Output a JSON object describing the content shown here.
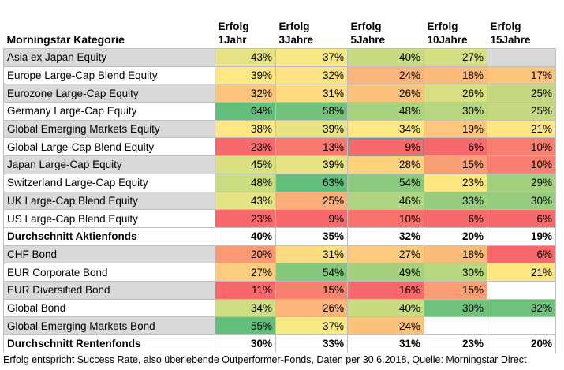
{
  "header": {
    "category": "Morningstar Kategorie",
    "cols": [
      {
        "l1": "Erfolg",
        "l2": "1Jahr"
      },
      {
        "l1": "Erfolg",
        "l2": "3Jahre"
      },
      {
        "l1": "Erfolg",
        "l2": "5Jahre"
      },
      {
        "l1": "Erfolg",
        "l2": "10Jahre"
      },
      {
        "l1": "Erfolg",
        "l2": "15Jahre"
      }
    ]
  },
  "rows": [
    {
      "name": "Asia ex Japan Equity",
      "shade": true,
      "bold": false,
      "cells": [
        {
          "v": "43%",
          "c": "#e5e383"
        },
        {
          "v": "37%",
          "c": "#f5e885"
        },
        {
          "v": "40%",
          "c": "#c7dc81"
        },
        {
          "v": "27%",
          "c": "#d4df82"
        },
        {
          "v": "",
          "c": "#d9d9d9"
        }
      ]
    },
    {
      "name": "Europe Large-Cap Blend Equity",
      "shade": false,
      "bold": false,
      "cells": [
        {
          "v": "39%",
          "c": "#fde883"
        },
        {
          "v": "32%",
          "c": "#fde283"
        },
        {
          "v": "24%",
          "c": "#fbb479"
        },
        {
          "v": "18%",
          "c": "#fbbc7b"
        },
        {
          "v": "17%",
          "c": "#fcc37c"
        }
      ]
    },
    {
      "name": "Eurozone Large-Cap Equity",
      "shade": true,
      "bold": false,
      "cells": [
        {
          "v": "32%",
          "c": "#fbc47c"
        },
        {
          "v": "31%",
          "c": "#fddc82"
        },
        {
          "v": "26%",
          "c": "#fcc27c"
        },
        {
          "v": "26%",
          "c": "#d8e082"
        },
        {
          "v": "25%",
          "c": "#c5da80"
        }
      ]
    },
    {
      "name": "Germany Large-Cap Equity",
      "shade": false,
      "bold": false,
      "cells": [
        {
          "v": "64%",
          "c": "#63be7b"
        },
        {
          "v": "58%",
          "c": "#74c37c"
        },
        {
          "v": "48%",
          "c": "#a9d27f"
        },
        {
          "v": "30%",
          "c": "#b6d680"
        },
        {
          "v": "25%",
          "c": "#c5da80"
        }
      ]
    },
    {
      "name": "Global Emerging Markets Equity",
      "shade": true,
      "bold": false,
      "cells": [
        {
          "v": "38%",
          "c": "#fee784"
        },
        {
          "v": "39%",
          "c": "#e6e483"
        },
        {
          "v": "34%",
          "c": "#fee884"
        },
        {
          "v": "19%",
          "c": "#fcc77d"
        },
        {
          "v": "21%",
          "c": "#fee683"
        }
      ]
    },
    {
      "name": "Global Large-Cap Blend Equity",
      "shade": false,
      "bold": false,
      "cells": [
        {
          "v": "23%",
          "c": "#f8696b"
        },
        {
          "v": "13%",
          "c": "#f8786e"
        },
        {
          "v": "9%",
          "c": "#f8696b",
          "sel": true
        },
        {
          "v": "6%",
          "c": "#f8696b"
        },
        {
          "v": "10%",
          "c": "#f97f70"
        }
      ]
    },
    {
      "name": "Japan Large-Cap Equity",
      "shade": true,
      "bold": false,
      "cells": [
        {
          "v": "45%",
          "c": "#d9e082"
        },
        {
          "v": "39%",
          "c": "#e6e483"
        },
        {
          "v": "28%",
          "c": "#fdd27f"
        },
        {
          "v": "15%",
          "c": "#fa9e75"
        },
        {
          "v": "10%",
          "c": "#f97f70"
        }
      ]
    },
    {
      "name": "Switzerland Large-Cap Equity",
      "shade": false,
      "bold": false,
      "cells": [
        {
          "v": "48%",
          "c": "#c9dc81"
        },
        {
          "v": "63%",
          "c": "#63be7b"
        },
        {
          "v": "54%",
          "c": "#8bca7e"
        },
        {
          "v": "23%",
          "c": "#fee683"
        },
        {
          "v": "29%",
          "c": "#a2d07f"
        }
      ]
    },
    {
      "name": "UK Large-Cap Blend Equity",
      "shade": true,
      "bold": false,
      "cells": [
        {
          "v": "43%",
          "c": "#e5e383"
        },
        {
          "v": "25%",
          "c": "#fbae78"
        },
        {
          "v": "46%",
          "c": "#b1d480"
        },
        {
          "v": "33%",
          "c": "#98cd7e"
        },
        {
          "v": "30%",
          "c": "#98cd7e"
        }
      ]
    },
    {
      "name": "US Large-Cap Blend Equity",
      "shade": false,
      "bold": false,
      "cells": [
        {
          "v": "23%",
          "c": "#f8696b"
        },
        {
          "v": "9%",
          "c": "#f8696b"
        },
        {
          "v": "10%",
          "c": "#f8716c"
        },
        {
          "v": "6%",
          "c": "#f8696b"
        },
        {
          "v": "6%",
          "c": "#f8696b"
        }
      ]
    },
    {
      "name": "Durchschnitt Aktienfonds",
      "shade": false,
      "bold": true,
      "cells": [
        {
          "v": "40%",
          "c": ""
        },
        {
          "v": "35%",
          "c": ""
        },
        {
          "v": "32%",
          "c": ""
        },
        {
          "v": "20%",
          "c": ""
        },
        {
          "v": "19%",
          "c": ""
        }
      ]
    },
    {
      "name": "CHF Bond",
      "shade": true,
      "bold": false,
      "cells": [
        {
          "v": "20%",
          "c": "#fa9a74"
        },
        {
          "v": "31%",
          "c": "#fddc82"
        },
        {
          "v": "27%",
          "c": "#fdca7e"
        },
        {
          "v": "18%",
          "c": "#fbbc7b"
        },
        {
          "v": "6%",
          "c": "#f8696b"
        }
      ]
    },
    {
      "name": "EUR Corporate Bond",
      "shade": false,
      "bold": false,
      "cells": [
        {
          "v": "27%",
          "c": "#fccd7e"
        },
        {
          "v": "54%",
          "c": "#84c77d"
        },
        {
          "v": "49%",
          "c": "#a5d17f"
        },
        {
          "v": "30%",
          "c": "#b6d680"
        },
        {
          "v": "21%",
          "c": "#fee683"
        }
      ]
    },
    {
      "name": "EUR Diversified Bond",
      "shade": true,
      "bold": false,
      "cells": [
        {
          "v": "11%",
          "c": "#f8696b"
        },
        {
          "v": "15%",
          "c": "#f8816f"
        },
        {
          "v": "16%",
          "c": "#f8696b"
        },
        {
          "v": "15%",
          "c": "#fa9e75"
        },
        {
          "v": "",
          "c": "#ffffff"
        }
      ]
    },
    {
      "name": "Global Bond",
      "shade": false,
      "bold": false,
      "cells": [
        {
          "v": "34%",
          "c": "#cfde82"
        },
        {
          "v": "26%",
          "c": "#fbb479"
        },
        {
          "v": "40%",
          "c": "#c7dc81"
        },
        {
          "v": "30%",
          "c": "#6fc17c"
        },
        {
          "v": "32%",
          "c": "#6fc17c"
        }
      ]
    },
    {
      "name": "Global Emerging Markets Bond",
      "shade": true,
      "bold": false,
      "cells": [
        {
          "v": "55%",
          "c": "#63be7b"
        },
        {
          "v": "37%",
          "c": "#f5e885"
        },
        {
          "v": "24%",
          "c": "#fcc27c"
        },
        {
          "v": "",
          "c": "#ffffff"
        },
        {
          "v": "",
          "c": "#ffffff"
        }
      ]
    },
    {
      "name": "Durchschnitt Rentenfonds",
      "shade": false,
      "bold": true,
      "cells": [
        {
          "v": "30%",
          "c": ""
        },
        {
          "v": "33%",
          "c": ""
        },
        {
          "v": "31%",
          "c": ""
        },
        {
          "v": "23%",
          "c": ""
        },
        {
          "v": "20%",
          "c": ""
        }
      ]
    }
  ],
  "colors": {
    "shade": "#d9d9d9",
    "plain": "#ffffff"
  },
  "footnote": "Erfolg entspricht Success Rate, also überlebende Outperformer-Fonds, Daten per 30.6.2018, Quelle: Morningstar Direct"
}
